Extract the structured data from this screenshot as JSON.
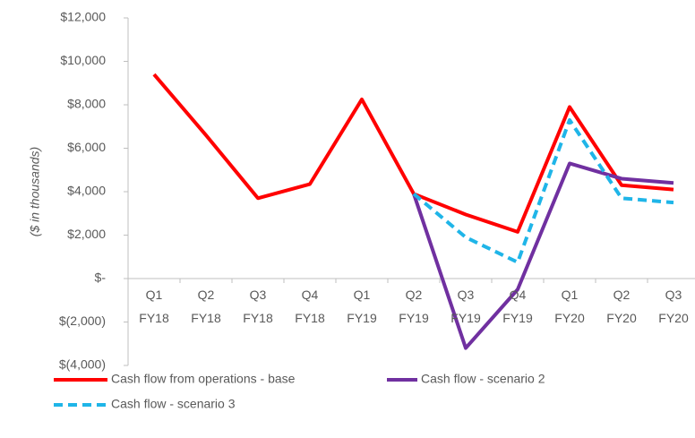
{
  "chart_data": {
    "type": "line",
    "y_label": "($ in thousands)",
    "categories": [
      "Q1 FY18",
      "Q2 FY18",
      "Q3 FY18",
      "Q4 FY18",
      "Q1 FY19",
      "Q2 FY19",
      "Q3 FY19",
      "Q4 FY19",
      "Q1 FY20",
      "Q2 FY20",
      "Q3 FY20"
    ],
    "series": [
      {
        "name": "Cash flow from operations - base",
        "color": "#ff0000",
        "dash": false,
        "values": [
          9400,
          6600,
          3700,
          4350,
          8250,
          3900,
          2950,
          2150,
          7900,
          4300,
          4100
        ]
      },
      {
        "name": "Cash flow - scenario 2",
        "color": "#7030a0",
        "dash": false,
        "values": [
          null,
          null,
          null,
          null,
          null,
          3900,
          -3200,
          -500,
          5300,
          4600,
          4400
        ]
      },
      {
        "name": "Cash flow - scenario 3",
        "color": "#1fb5e8",
        "dash": true,
        "values": [
          null,
          null,
          null,
          null,
          null,
          3900,
          1900,
          750,
          7300,
          3700,
          3500
        ]
      }
    ],
    "ylim": [
      -4000,
      12000
    ],
    "yticks": [
      {
        "value": -4000,
        "label": "$(4,000)"
      },
      {
        "value": -2000,
        "label": "$(2,000)"
      },
      {
        "value": 0,
        "label": "$-"
      },
      {
        "value": 2000,
        "label": "$2,000"
      },
      {
        "value": 4000,
        "label": "$4,000"
      },
      {
        "value": 6000,
        "label": "$6,000"
      },
      {
        "value": 8000,
        "label": "$8,000"
      },
      {
        "value": 10000,
        "label": "$10,000"
      },
      {
        "value": 12000,
        "label": "$12,000"
      }
    ],
    "grid": false
  }
}
